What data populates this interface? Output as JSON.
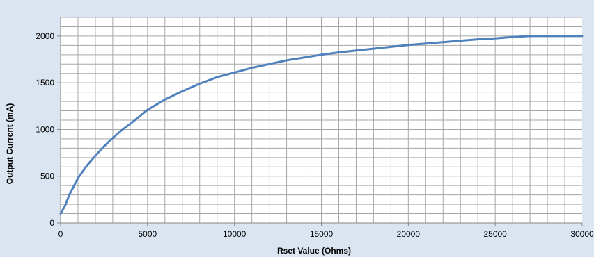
{
  "chart_data": {
    "type": "line",
    "title": "",
    "xlabel": "Rset Value (Ohms)",
    "ylabel": "Output Current (mA)",
    "xlim": [
      0,
      30000
    ],
    "ylim": [
      0,
      2200
    ],
    "x_ticks": [
      0,
      5000,
      10000,
      15000,
      20000,
      25000,
      30000
    ],
    "x_tick_labels": [
      "0",
      "5000",
      "10000",
      "15000",
      "20000",
      "25000",
      "30000"
    ],
    "y_ticks": [
      0,
      500,
      1000,
      1500,
      2000
    ],
    "y_tick_labels": [
      "0",
      "500",
      "1000",
      "1500",
      "2000"
    ],
    "grid": true,
    "legend": "none",
    "colors": {
      "background": "#dbe5f1",
      "plot_area": "#ffffff",
      "grid": "#a6a6a6",
      "line": "#4f81bd"
    },
    "series": [
      {
        "x": [
          0,
          250,
          500,
          1000,
          1500,
          2000,
          2500,
          3000,
          3500,
          4000,
          5000,
          6000,
          7000,
          8000,
          9000,
          10000,
          11000,
          12000,
          13000,
          14000,
          15000,
          16000,
          17000,
          18000,
          19000,
          20000,
          21000,
          22000,
          23000,
          24000,
          25000,
          26000,
          27000,
          28000,
          29000,
          30000
        ],
        "values": [
          100,
          180,
          300,
          480,
          610,
          720,
          820,
          910,
          990,
          1060,
          1210,
          1320,
          1410,
          1490,
          1560,
          1610,
          1660,
          1700,
          1740,
          1770,
          1800,
          1825,
          1845,
          1865,
          1885,
          1905,
          1920,
          1935,
          1950,
          1965,
          1975,
          1990,
          2000,
          2000,
          2000,
          2000
        ]
      }
    ]
  }
}
